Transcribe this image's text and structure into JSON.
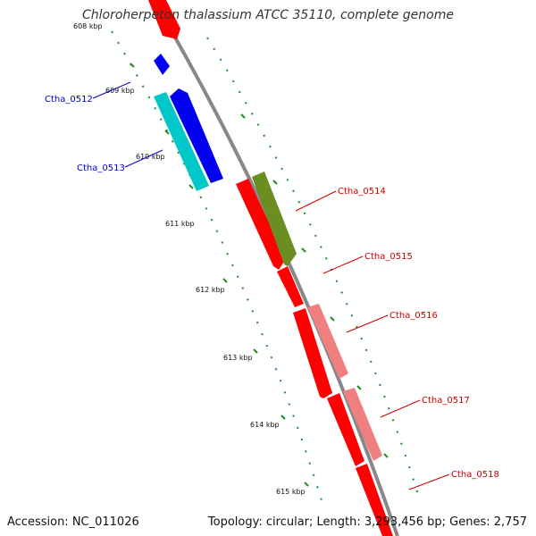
{
  "title": "Chloroherpeton thalassium ATCC 35110, complete genome",
  "accession_text": "Accession: NC_011026",
  "topology_text": "Topology: circular; Length: 3,293,456 bp; Genes: 2,757",
  "colors": {
    "forward_red": "#ff0000",
    "pink": "#f08080",
    "olive": "#6b8e23",
    "blue": "#0000ee",
    "cyan": "#00cccc",
    "backbone": "#888888",
    "ticks": "#228b22"
  },
  "ticks": [
    "608 kbp",
    "609 kbp",
    "610 kbp",
    "611 kbp",
    "612 kbp",
    "613 kbp",
    "614 kbp",
    "615 kbp"
  ],
  "gene_labels": [
    {
      "name": "Ctha_0512",
      "color": "#0000cc"
    },
    {
      "name": "Ctha_0513",
      "color": "#0000cc"
    },
    {
      "name": "Ctha_0514",
      "color": "#cc0000"
    },
    {
      "name": "Ctha_0515",
      "color": "#cc0000"
    },
    {
      "name": "Ctha_0516",
      "color": "#cc0000"
    },
    {
      "name": "Ctha_0517",
      "color": "#cc0000"
    },
    {
      "name": "Ctha_0518",
      "color": "#cc0000"
    }
  ]
}
